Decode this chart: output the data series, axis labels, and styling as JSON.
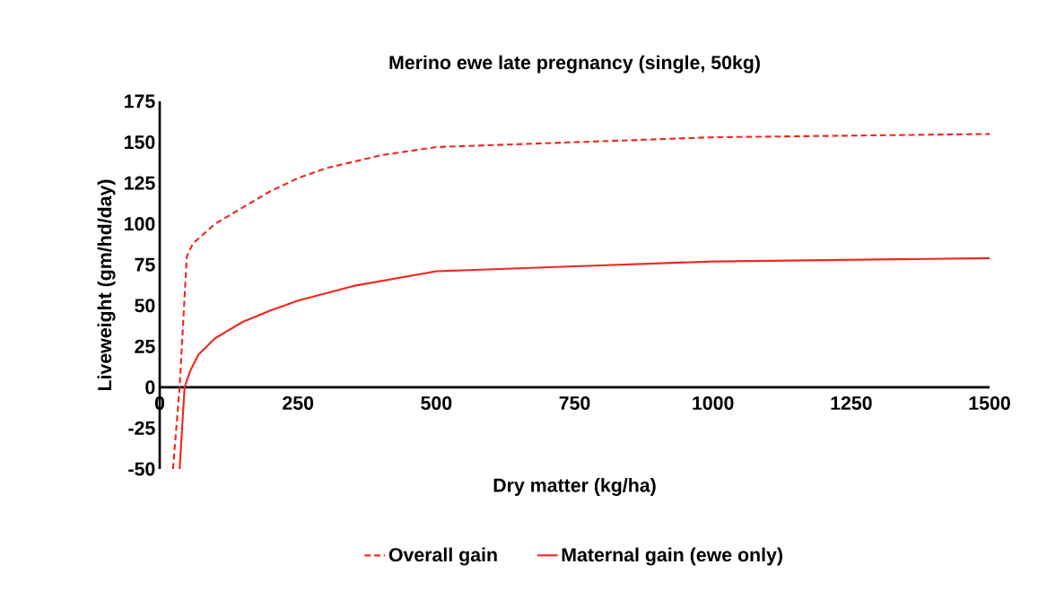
{
  "chart_data": {
    "type": "line",
    "title": "Merino ewe late pregnancy (single, 50kg)",
    "xlabel": "Dry matter (kg/ha)",
    "ylabel": "Liveweight (gm/hd/day)",
    "xlim": [
      0,
      1500
    ],
    "xticks": [
      0,
      250,
      500,
      750,
      1000,
      1250,
      1500
    ],
    "ylim": [
      -50,
      175
    ],
    "yticks": [
      -50,
      -25,
      0,
      25,
      50,
      75,
      100,
      125,
      150,
      175
    ],
    "grid": false,
    "legend": "bottom",
    "marker": "none",
    "series": [
      {
        "name": "Overall gain",
        "color": "#f0281e",
        "line_style": "dashed",
        "x": [
          24,
          36,
          49,
          60,
          100,
          150,
          200,
          250,
          300,
          400,
          500,
          750,
          1000,
          1500
        ],
        "values": [
          -50,
          0,
          80,
          88,
          100,
          110,
          120,
          128,
          134,
          142,
          147,
          150,
          153,
          155
        ]
      },
      {
        "name": "Maternal gain (ewe only)",
        "color": "#f0281e",
        "line_style": "solid",
        "x": [
          36,
          45,
          55,
          70,
          100,
          150,
          200,
          250,
          350,
          500,
          750,
          1000,
          1500
        ],
        "values": [
          -50,
          0,
          10,
          20,
          30,
          40,
          47,
          53,
          62,
          71,
          74,
          77,
          79
        ]
      }
    ]
  }
}
